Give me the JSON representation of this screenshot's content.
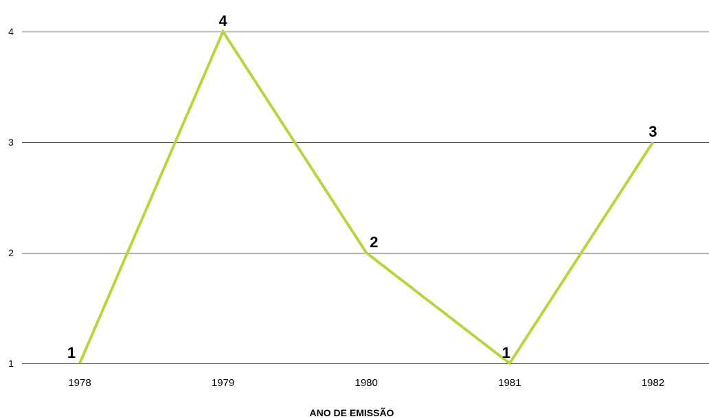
{
  "chart_data": {
    "type": "line",
    "title": "",
    "xlabel": "ANO DE EMISSÃO",
    "ylabel": "",
    "categories": [
      "1978",
      "1979",
      "1980",
      "1981",
      "1982"
    ],
    "series": [
      {
        "values": [
          1,
          4,
          2,
          1,
          3
        ],
        "color": "#b8d43f"
      }
    ],
    "y_ticks": [
      1,
      2,
      3,
      4
    ],
    "ylim": [
      1,
      4
    ],
    "grid": "horizontal",
    "data_labels": true,
    "legend": "none"
  }
}
